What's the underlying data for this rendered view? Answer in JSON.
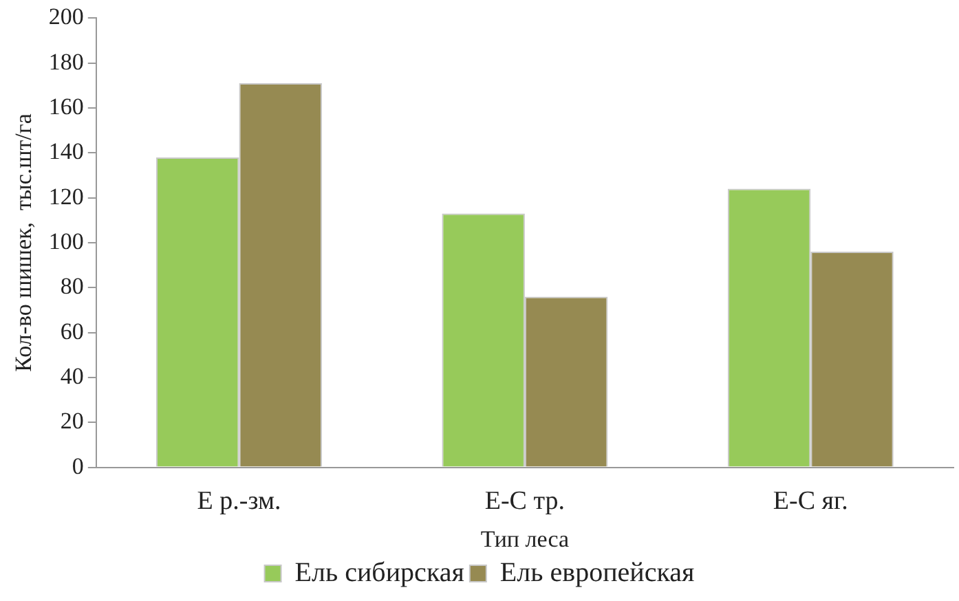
{
  "chart_data": {
    "type": "bar",
    "xlabel": "Тип леса",
    "ylabel": "Кол-во шишек,  тыс.шт/га",
    "categories": [
      "Е р.-зм.",
      "Е-С тр.",
      "Е-С яг."
    ],
    "series": [
      {
        "name": "Ель сибирская",
        "color": "#97ca5a",
        "values": [
          138,
          113,
          124
        ]
      },
      {
        "name": "Ель европейская",
        "color": "#968a52",
        "values": [
          171,
          76,
          96
        ]
      }
    ],
    "ylim": [
      0,
      200
    ],
    "yticks": [
      0,
      20,
      40,
      60,
      80,
      100,
      120,
      140,
      160,
      180,
      200
    ],
    "grid": false,
    "legend": "bottom"
  }
}
